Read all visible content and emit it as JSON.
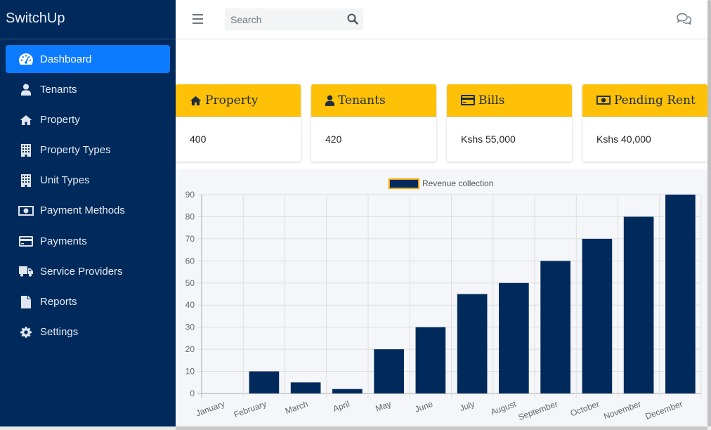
{
  "app": {
    "brand": "SwitchUp"
  },
  "sidebar": {
    "items": [
      {
        "label": "Dashboard",
        "icon": "tachometer-icon",
        "active": true
      },
      {
        "label": "Tenants",
        "icon": "user-icon"
      },
      {
        "label": "Property",
        "icon": "home-icon"
      },
      {
        "label": "Property Types",
        "icon": "building-icon"
      },
      {
        "label": "Unit Types",
        "icon": "building-icon"
      },
      {
        "label": "Payment Methods",
        "icon": "money-bill-icon"
      },
      {
        "label": "Payments",
        "icon": "credit-card-icon"
      },
      {
        "label": "Service Providers",
        "icon": "truck-icon"
      },
      {
        "label": "Reports",
        "icon": "file-icon"
      },
      {
        "label": "Settings",
        "icon": "gear-icon"
      }
    ]
  },
  "topbar": {
    "search_placeholder": "Search"
  },
  "cards": [
    {
      "title": "Property",
      "value": "400",
      "icon": "home-icon"
    },
    {
      "title": "Tenants",
      "value": "420",
      "icon": "user-icon"
    },
    {
      "title": "Bills",
      "value": "Kshs 55,000",
      "icon": "credit-card-icon"
    },
    {
      "title": "Pending Rent",
      "value": "Kshs 40,000",
      "icon": "money-bill-icon"
    }
  ],
  "colors": {
    "sidebar_bg": "#002a5c",
    "active": "#0d7bff",
    "card_header": "#ffc107",
    "bar_fill": "#002a5c",
    "legend_border": "#f0a300"
  },
  "chart_data": {
    "type": "bar",
    "legend": "Revenue collection",
    "categories": [
      "January",
      "February",
      "March",
      "April",
      "May",
      "June",
      "July",
      "August",
      "September",
      "October",
      "November",
      "December"
    ],
    "values": [
      0,
      10,
      5,
      2,
      20,
      30,
      45,
      50,
      60,
      70,
      80,
      90
    ],
    "ylim": [
      0,
      90
    ],
    "yticks": [
      0,
      10,
      20,
      30,
      40,
      50,
      60,
      70,
      80,
      90
    ],
    "grid": true
  }
}
